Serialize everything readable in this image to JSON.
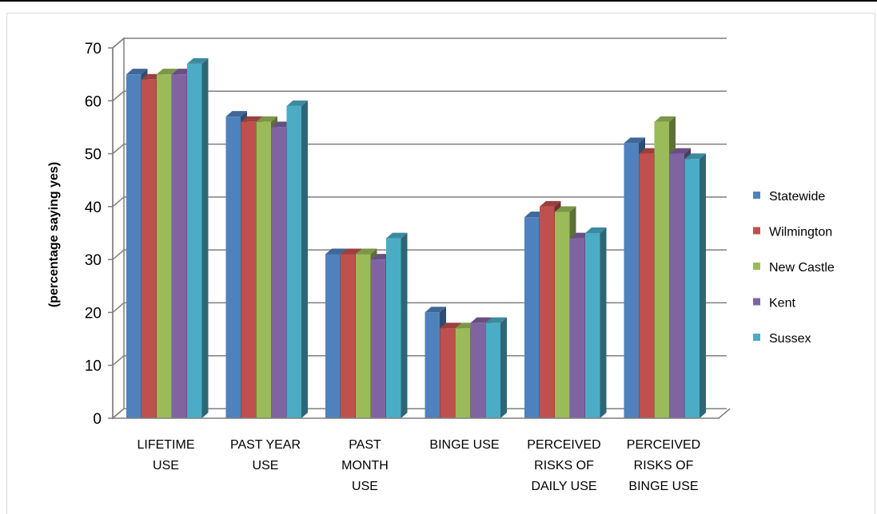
{
  "chart_data": {
    "type": "bar",
    "title": "",
    "xlabel": "",
    "ylabel": "(percentage saying yes)",
    "ylim": [
      0,
      70
    ],
    "yticks": [
      0,
      10,
      20,
      30,
      40,
      50,
      60,
      70
    ],
    "grid": true,
    "legend_position": "right",
    "categories": [
      [
        "LIFETIME",
        "USE"
      ],
      [
        "PAST YEAR",
        "USE"
      ],
      [
        "PAST",
        "MONTH",
        "USE"
      ],
      [
        "BINGE USE"
      ],
      [
        "PERCEIVED",
        "RISKS OF",
        "DAILY USE"
      ],
      [
        "PERCEIVED",
        "RISKS OF",
        "BINGE USE"
      ]
    ],
    "series": [
      {
        "name": "Statewide",
        "color": "#4f81bd",
        "values": [
          65,
          57,
          31,
          20,
          38,
          52
        ]
      },
      {
        "name": "Wilmington",
        "color": "#c0504d",
        "values": [
          64,
          56,
          31,
          17,
          40,
          50
        ]
      },
      {
        "name": "New Castle",
        "color": "#9bbb59",
        "values": [
          65,
          56,
          31,
          17,
          39,
          56
        ]
      },
      {
        "name": "Kent",
        "color": "#8064a2",
        "values": [
          65,
          55,
          30,
          18,
          34,
          50
        ]
      },
      {
        "name": "Sussex",
        "color": "#4bacc6",
        "values": [
          67,
          59,
          34,
          18,
          35,
          49
        ]
      }
    ]
  }
}
